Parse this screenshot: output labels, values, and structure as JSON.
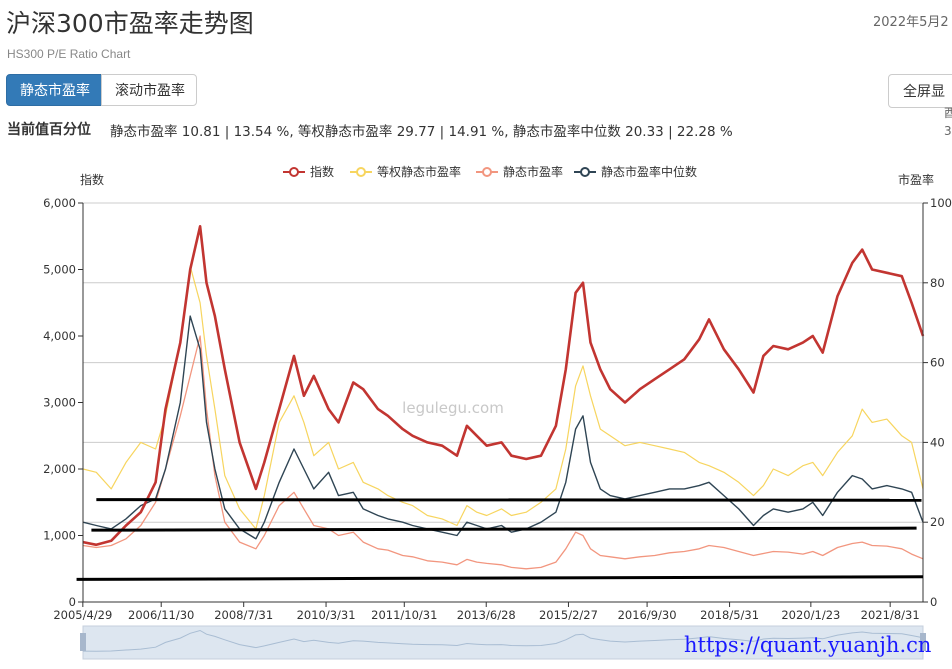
{
  "header": {
    "title": "沪深300市盈率走势图",
    "date": "2022年5月2",
    "subtitle": "HS300 P/E Ratio Chart"
  },
  "tabs": [
    {
      "label": "静态市盈率",
      "active": true
    },
    {
      "label": "滚动市盈率",
      "active": false
    }
  ],
  "toolbar": {
    "fullscreen_label": "全屏显"
  },
  "percentile": {
    "label": "当前值百分位",
    "text": "静态市盈率 10.81 | 13.54 %, 等权静态市盈率 29.77 | 14.91 %, 静态市盈率中位数 20.33 | 22.28 %"
  },
  "side_fragments": [
    "酉",
    "3"
  ],
  "watermark": "legulegu.com",
  "url_overlay": "https://quant.yuanjh.cn",
  "colors": {
    "index": "#c23531",
    "equal_weight_pe": "#f7d55f",
    "static_pe": "#f2967f",
    "median_pe": "#2f4554",
    "active_tab": "#337ab7",
    "overlay_lines": "#000000"
  },
  "chart_data": {
    "type": "line",
    "legend": [
      "指数",
      "等权静态市盈率",
      "静态市盈率",
      "静态市盈率中位数"
    ],
    "legend_position": "top-center",
    "y_left_label": "指数",
    "y_right_label": "市盈率",
    "y_left_ticks": [
      "0",
      "1,000",
      "2,000",
      "3,000",
      "4,000",
      "5,000",
      "6,000"
    ],
    "y_right_ticks": [
      "0",
      "20",
      "40",
      "60",
      "80",
      "100"
    ],
    "y_left_range": [
      0,
      6000
    ],
    "y_right_range": [
      0,
      100
    ],
    "x_ticks": [
      "2005/4/29",
      "2006/11/30",
      "2008/7/31",
      "2010/3/31",
      "2011/10/31",
      "2013/6/28",
      "2015/2/27",
      "2016/9/30",
      "2018/5/31",
      "2020/1/23",
      "2021/8/31"
    ],
    "x_range": [
      "2005/4/29",
      "2022/4/29"
    ],
    "grid": true,
    "data_zoom_slider": true,
    "series": [
      {
        "name": "指数",
        "axis": "left",
        "x": [
          2005.33,
          2005.6,
          2005.9,
          2006.2,
          2006.5,
          2006.8,
          2007.0,
          2007.3,
          2007.5,
          2007.7,
          2007.83,
          2008.0,
          2008.2,
          2008.5,
          2008.83,
          2009.0,
          2009.3,
          2009.6,
          2009.8,
          2010.0,
          2010.3,
          2010.5,
          2010.8,
          2011.0,
          2011.3,
          2011.5,
          2011.8,
          2012.0,
          2012.3,
          2012.6,
          2012.9,
          2013.1,
          2013.3,
          2013.5,
          2013.8,
          2014.0,
          2014.3,
          2014.6,
          2014.9,
          2015.1,
          2015.3,
          2015.45,
          2015.6,
          2015.8,
          2016.0,
          2016.3,
          2016.6,
          2016.9,
          2017.2,
          2017.5,
          2017.8,
          2018.0,
          2018.3,
          2018.6,
          2018.9,
          2019.1,
          2019.3,
          2019.6,
          2019.9,
          2020.1,
          2020.3,
          2020.6,
          2020.9,
          2021.1,
          2021.3,
          2021.6,
          2021.9,
          2022.1,
          2022.33
        ],
        "values": [
          900,
          860,
          920,
          1150,
          1350,
          1800,
          2900,
          3900,
          5000,
          5650,
          4800,
          4300,
          3500,
          2400,
          1700,
          2100,
          2900,
          3700,
          3100,
          3400,
          2900,
          2700,
          3300,
          3200,
          2900,
          2800,
          2600,
          2500,
          2400,
          2350,
          2200,
          2650,
          2500,
          2350,
          2400,
          2200,
          2150,
          2200,
          2650,
          3500,
          4650,
          4800,
          3900,
          3500,
          3200,
          3000,
          3200,
          3350,
          3500,
          3650,
          3950,
          4250,
          3800,
          3500,
          3150,
          3700,
          3850,
          3800,
          3900,
          4000,
          3750,
          4600,
          5100,
          5300,
          5000,
          4950,
          4900,
          4500,
          4000
        ]
      },
      {
        "name": "等权静态市盈率",
        "axis": "left",
        "x": [
          2005.33,
          2005.6,
          2005.9,
          2006.2,
          2006.5,
          2006.8,
          2007.0,
          2007.3,
          2007.5,
          2007.7,
          2007.83,
          2008.0,
          2008.2,
          2008.5,
          2008.83,
          2009.0,
          2009.3,
          2009.6,
          2009.8,
          2010.0,
          2010.3,
          2010.5,
          2010.8,
          2011.0,
          2011.3,
          2011.5,
          2011.8,
          2012.0,
          2012.3,
          2012.6,
          2012.9,
          2013.1,
          2013.3,
          2013.5,
          2013.8,
          2014.0,
          2014.3,
          2014.6,
          2014.9,
          2015.1,
          2015.3,
          2015.45,
          2015.6,
          2015.8,
          2016.0,
          2016.3,
          2016.6,
          2016.9,
          2017.2,
          2017.5,
          2017.8,
          2018.0,
          2018.3,
          2018.6,
          2018.9,
          2019.1,
          2019.3,
          2019.6,
          2019.9,
          2020.1,
          2020.3,
          2020.6,
          2020.9,
          2021.1,
          2021.3,
          2021.6,
          2021.9,
          2022.1,
          2022.33
        ],
        "values": [
          2000,
          1950,
          1700,
          2100,
          2400,
          2300,
          2800,
          3900,
          5050,
          4500,
          3700,
          2900,
          1900,
          1400,
          1100,
          1600,
          2700,
          3100,
          2700,
          2200,
          2400,
          2000,
          2100,
          1800,
          1700,
          1600,
          1500,
          1450,
          1300,
          1250,
          1150,
          1450,
          1350,
          1300,
          1400,
          1300,
          1350,
          1500,
          1700,
          2300,
          3250,
          3550,
          3100,
          2600,
          2500,
          2350,
          2400,
          2350,
          2300,
          2250,
          2100,
          2050,
          1950,
          1800,
          1600,
          1750,
          2000,
          1900,
          2050,
          2100,
          1900,
          2250,
          2500,
          2900,
          2700,
          2750,
          2500,
          2400,
          1700
        ]
      },
      {
        "name": "静态市盈率",
        "axis": "left",
        "x": [
          2005.33,
          2005.6,
          2005.9,
          2006.2,
          2006.5,
          2006.8,
          2007.0,
          2007.3,
          2007.5,
          2007.7,
          2007.83,
          2008.0,
          2008.2,
          2008.5,
          2008.83,
          2009.0,
          2009.3,
          2009.6,
          2009.8,
          2010.0,
          2010.3,
          2010.5,
          2010.8,
          2011.0,
          2011.3,
          2011.5,
          2011.8,
          2012.0,
          2012.3,
          2012.6,
          2012.9,
          2013.1,
          2013.3,
          2013.5,
          2013.8,
          2014.0,
          2014.3,
          2014.6,
          2014.9,
          2015.1,
          2015.3,
          2015.45,
          2015.6,
          2015.8,
          2016.0,
          2016.3,
          2016.6,
          2016.9,
          2017.2,
          2017.5,
          2017.8,
          2018.0,
          2018.3,
          2018.6,
          2018.9,
          2019.1,
          2019.3,
          2019.6,
          2019.9,
          2020.1,
          2020.3,
          2020.6,
          2020.9,
          2021.1,
          2021.3,
          2021.6,
          2021.9,
          2022.1,
          2022.33
        ],
        "values": [
          850,
          820,
          850,
          950,
          1150,
          1500,
          2000,
          2800,
          3400,
          4000,
          2900,
          1900,
          1200,
          900,
          800,
          1000,
          1450,
          1650,
          1400,
          1150,
          1100,
          1000,
          1050,
          900,
          800,
          780,
          700,
          680,
          620,
          600,
          560,
          640,
          600,
          580,
          560,
          520,
          500,
          520,
          600,
          800,
          1050,
          1000,
          800,
          700,
          680,
          650,
          680,
          700,
          740,
          760,
          800,
          850,
          820,
          760,
          700,
          730,
          760,
          750,
          720,
          760,
          700,
          820,
          880,
          900,
          850,
          840,
          800,
          720,
          650
        ]
      },
      {
        "name": "静态市盈率中位数",
        "axis": "left",
        "x": [
          2005.33,
          2005.6,
          2005.9,
          2006.2,
          2006.5,
          2006.8,
          2007.0,
          2007.3,
          2007.5,
          2007.7,
          2007.83,
          2008.0,
          2008.2,
          2008.5,
          2008.83,
          2009.0,
          2009.3,
          2009.6,
          2009.8,
          2010.0,
          2010.3,
          2010.5,
          2010.8,
          2011.0,
          2011.3,
          2011.5,
          2011.8,
          2012.0,
          2012.3,
          2012.6,
          2012.9,
          2013.1,
          2013.3,
          2013.5,
          2013.8,
          2014.0,
          2014.3,
          2014.6,
          2014.9,
          2015.1,
          2015.3,
          2015.45,
          2015.6,
          2015.8,
          2016.0,
          2016.3,
          2016.6,
          2016.9,
          2017.2,
          2017.5,
          2017.8,
          2018.0,
          2018.3,
          2018.6,
          2018.9,
          2019.1,
          2019.3,
          2019.6,
          2019.9,
          2020.1,
          2020.3,
          2020.6,
          2020.9,
          2021.1,
          2021.3,
          2021.6,
          2021.9,
          2022.1,
          2022.33
        ],
        "values": [
          1200,
          1150,
          1100,
          1250,
          1450,
          1550,
          2000,
          3000,
          4300,
          3800,
          2700,
          2000,
          1400,
          1100,
          950,
          1200,
          1800,
          2300,
          2000,
          1700,
          1950,
          1600,
          1650,
          1400,
          1300,
          1250,
          1200,
          1150,
          1100,
          1050,
          1000,
          1200,
          1150,
          1100,
          1150,
          1050,
          1100,
          1200,
          1350,
          1800,
          2600,
          2800,
          2100,
          1700,
          1600,
          1550,
          1600,
          1650,
          1700,
          1700,
          1750,
          1800,
          1600,
          1400,
          1150,
          1300,
          1400,
          1350,
          1400,
          1500,
          1300,
          1650,
          1900,
          1850,
          1700,
          1750,
          1700,
          1650,
          1200
        ]
      }
    ]
  }
}
